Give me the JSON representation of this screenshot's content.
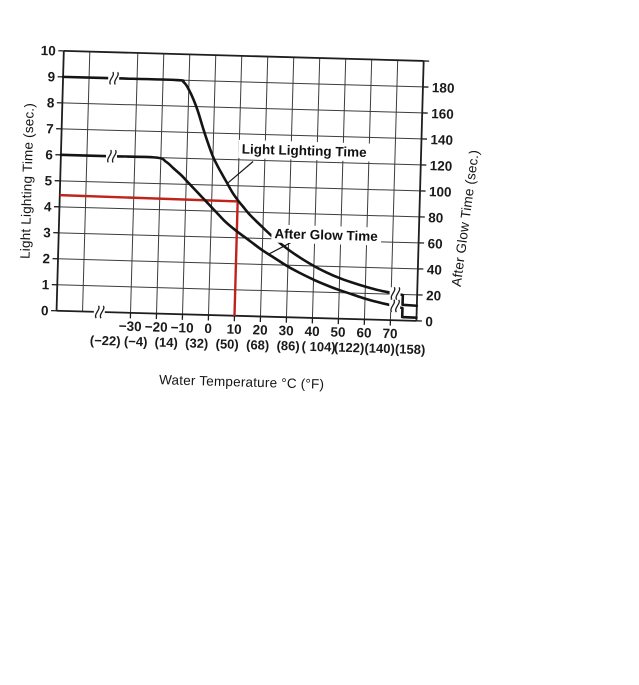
{
  "chart_data": {
    "type": "line",
    "title": "",
    "xlabel": "Water Temperature °C (°F)",
    "ylabel_left": "Light Lighting Time (sec.)",
    "ylabel_right": "After Glow Time (sec.)",
    "grid": true,
    "legend_position": "none",
    "y_left": {
      "min": 0,
      "max": 10,
      "ticks": [
        "0",
        "1",
        "2",
        "3",
        "4",
        "5",
        "6",
        "7",
        "8",
        "9",
        "10"
      ]
    },
    "y_right": {
      "min": 0,
      "max": 200,
      "ticks": [
        "0",
        "20",
        "40",
        "60",
        "80",
        "100",
        "120",
        "140",
        "160",
        "180"
      ]
    },
    "x_axis": {
      "unit_primary": "°C",
      "unit_secondary": "°F",
      "has_low_break": true,
      "has_high_break": true,
      "ticks": [
        {
          "t": -30,
          "c": "−30",
          "f": "(−22)"
        },
        {
          "t": -20,
          "c": "−20",
          "f": "(−4)"
        },
        {
          "t": -10,
          "c": "−10",
          "f": "(14)"
        },
        {
          "t": 0,
          "c": "0",
          "f": "(32)"
        },
        {
          "t": 10,
          "c": "10",
          "f": "(50)"
        },
        {
          "t": 20,
          "c": "20",
          "f": "(68)"
        },
        {
          "t": 30,
          "c": "30",
          "f": "(86)"
        },
        {
          "t": 40,
          "c": "40",
          "f": "( 104)"
        },
        {
          "t": 50,
          "c": "50",
          "f": "(122)"
        },
        {
          "t": 60,
          "c": "60",
          "f": "(140)"
        },
        {
          "t": 70,
          "c": "70",
          "f": "(158)"
        }
      ]
    },
    "series": [
      {
        "name": "Light Lighting Time",
        "axis": "left",
        "units": "sec",
        "color": "#141414",
        "points_temp_sec": [
          [
            -58.5,
            9
          ],
          [
            -40,
            9
          ],
          [
            -15,
            9
          ],
          [
            -12,
            8.92
          ],
          [
            -10,
            8.65
          ],
          [
            -8,
            8.25
          ],
          [
            -6,
            7.75
          ],
          [
            -4,
            7.15
          ],
          [
            -2,
            6.6
          ],
          [
            0,
            6.1
          ],
          [
            2,
            5.72
          ],
          [
            4,
            5.38
          ],
          [
            6,
            5.05
          ],
          [
            8,
            4.72
          ],
          [
            10,
            4.45
          ],
          [
            12,
            4.22
          ],
          [
            15,
            3.88
          ],
          [
            20,
            3.42
          ],
          [
            25,
            2.98
          ],
          [
            30,
            2.6
          ],
          [
            35,
            2.28
          ],
          [
            40,
            2.0
          ],
          [
            45,
            1.76
          ],
          [
            50,
            1.56
          ],
          [
            55,
            1.4
          ],
          [
            60,
            1.26
          ],
          [
            65,
            1.14
          ],
          [
            70,
            1.05
          ],
          [
            74.5,
            0.98
          ],
          [
            74.5,
            0.6
          ],
          [
            80,
            0.58
          ]
        ]
      },
      {
        "name": "After Glow Time",
        "axis": "right",
        "units": "sec",
        "color": "#141414",
        "points_temp_sec": [
          [
            -58.5,
            120
          ],
          [
            -40,
            120
          ],
          [
            -22,
            120
          ],
          [
            -18,
            117
          ],
          [
            -15,
            112
          ],
          [
            -12,
            107
          ],
          [
            -10,
            103
          ],
          [
            -8,
            99
          ],
          [
            -6,
            95
          ],
          [
            -4,
            91
          ],
          [
            -2,
            87
          ],
          [
            0,
            83
          ],
          [
            2,
            79
          ],
          [
            5,
            73
          ],
          [
            8,
            68
          ],
          [
            10,
            65
          ],
          [
            15,
            58
          ],
          [
            20,
            51
          ],
          [
            25,
            45
          ],
          [
            30,
            39
          ],
          [
            35,
            34
          ],
          [
            40,
            29.5
          ],
          [
            45,
            25.5
          ],
          [
            50,
            22
          ],
          [
            55,
            19
          ],
          [
            60,
            16
          ],
          [
            65,
            13.5
          ],
          [
            70,
            11.5
          ],
          [
            74.5,
            9.5
          ],
          [
            74.5,
            2.6
          ],
          [
            80,
            2.4
          ]
        ]
      }
    ],
    "curve_labels": [
      {
        "text": "Light Lighting Time",
        "anchor_temp": 11,
        "anchor_value": 6.42,
        "leader": [
          [
            15.5,
            5.95
          ],
          [
            5.5,
            5.05
          ]
        ]
      },
      {
        "text": "After Glow Time",
        "anchor_temp": 24.5,
        "anchor_value": 3.2,
        "leader": [
          [
            31,
            2.88
          ],
          [
            22,
            2.38
          ]
        ]
      }
    ],
    "reading_line": {
      "color": "#bf241c",
      "temp_c": 10,
      "light_time_sec": 4.4,
      "value_at_axis_sec": 4.45
    },
    "axis_breaks": [
      {
        "t": -42,
        "v": 0
      },
      {
        "t": -39,
        "v": 9
      },
      {
        "t": -39,
        "v": 6
      },
      {
        "t": 71.5,
        "v": 1.03
      },
      {
        "t": 71.5,
        "v": 0.55
      }
    ],
    "line_colors": {
      "grid": "#3c3c3c",
      "frame": "#1e1e1e",
      "curve": "#141414"
    }
  }
}
